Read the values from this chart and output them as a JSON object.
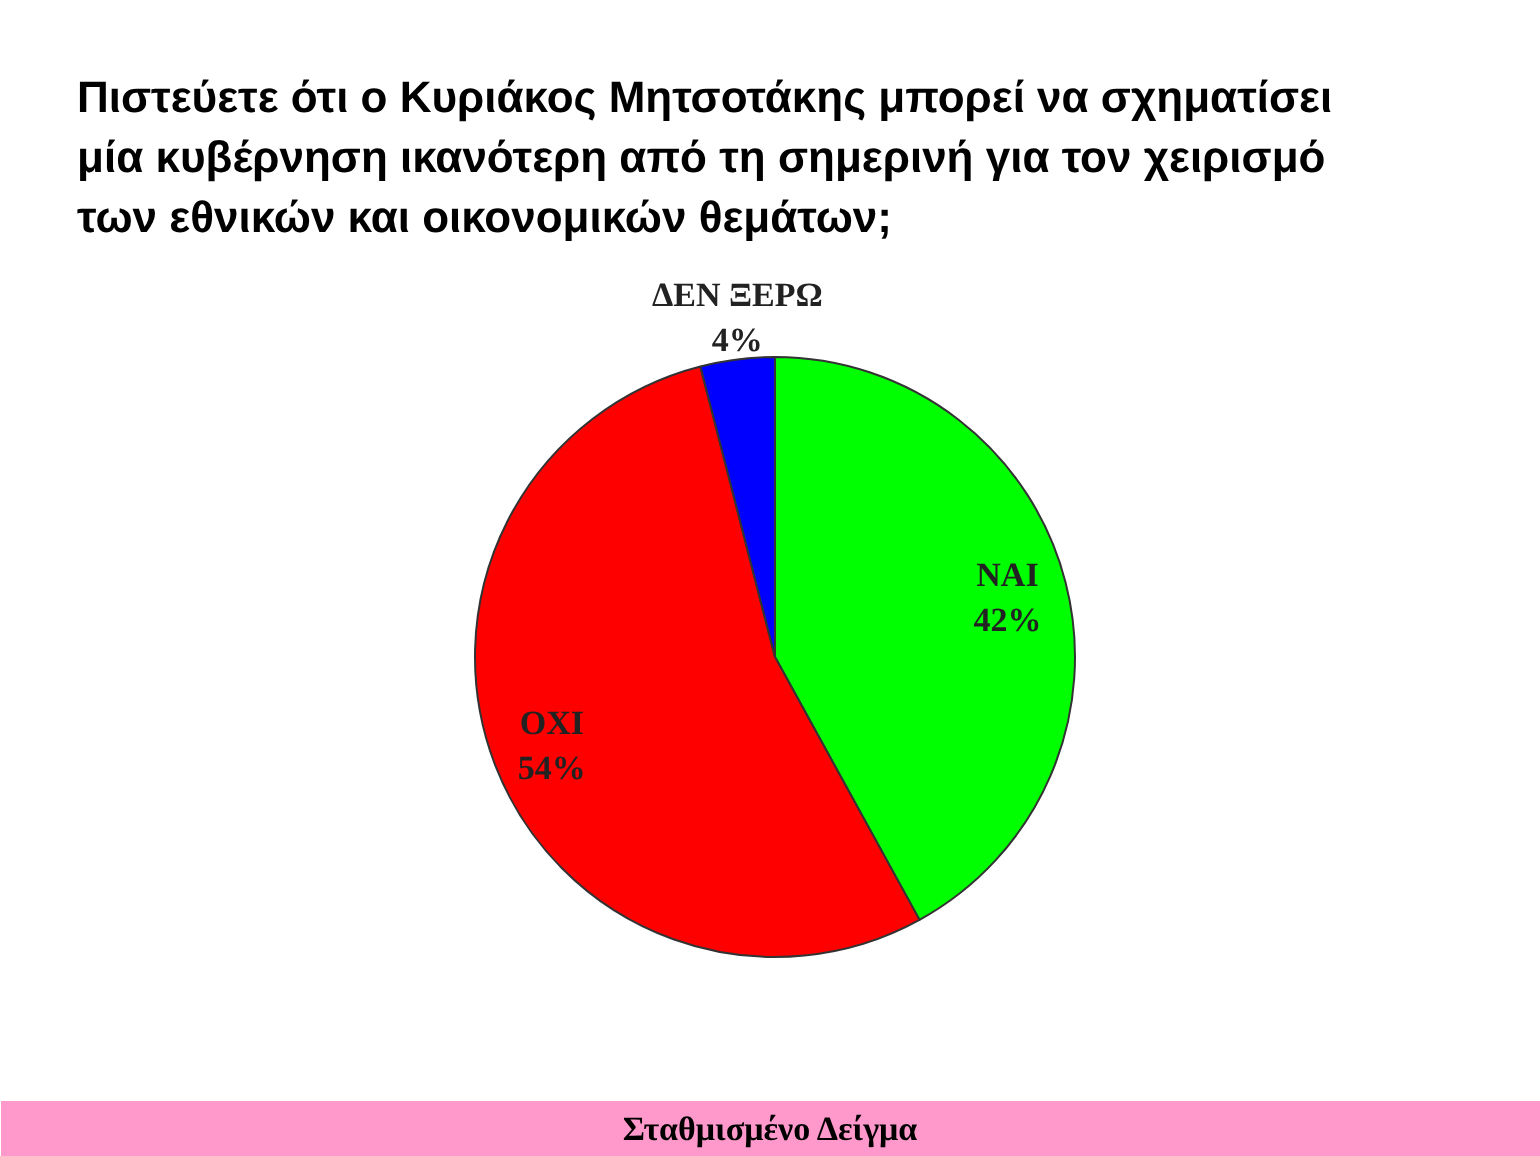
{
  "chart_data": {
    "type": "pie",
    "title": "Πιστεύετε ότι ο Κυριάκος Μητσοτάκης μπορεί να σχηματίσει μία κυβέρνηση ικανότερη από τη σημερινή για τον χειρισμό των εθνικών και οικονομικών θεμάτων;",
    "categories": [
      "ΝΑΙ",
      "ΟΧΙ",
      "ΔΕΝ ΞΕΡΩ"
    ],
    "values": [
      42,
      54,
      4
    ],
    "colors": [
      "#00ff00",
      "#ff0000",
      "#0000ff"
    ],
    "value_labels": [
      "42%",
      "54%",
      "4%"
    ],
    "annotations": [
      "Σταθμισμένο Δείγμα"
    ]
  }
}
